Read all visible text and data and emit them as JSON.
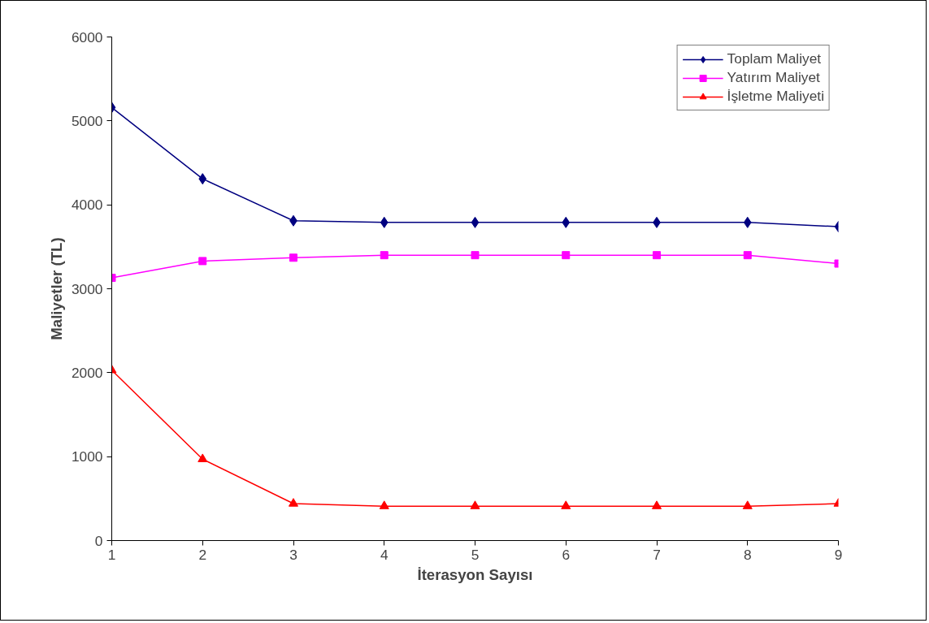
{
  "chart_data": {
    "type": "line",
    "xlabel": "İterasyon Sayısı",
    "ylabel": "Maliyetler (TL)",
    "x": [
      1,
      2,
      3,
      4,
      5,
      6,
      7,
      8,
      9
    ],
    "series": [
      {
        "name": "Toplam Maliyet",
        "color": "#000080",
        "marker": "diamond",
        "values": [
          5160,
          4310,
          3810,
          3790,
          3790,
          3790,
          3790,
          3790,
          3740
        ]
      },
      {
        "name": "Yatırım Maliyet",
        "color": "#ff00ff",
        "marker": "square",
        "values": [
          3130,
          3330,
          3370,
          3400,
          3400,
          3400,
          3400,
          3400,
          3300
        ]
      },
      {
        "name": "İşletme Maliyeti",
        "color": "#ff0000",
        "marker": "triangle",
        "values": [
          2030,
          970,
          440,
          410,
          410,
          410,
          410,
          410,
          440
        ]
      }
    ],
    "xlim": [
      1,
      9
    ],
    "xticks": [
      1,
      2,
      3,
      4,
      5,
      6,
      7,
      8,
      9
    ],
    "ylim": [
      0,
      6000
    ],
    "yticks": [
      0,
      1000,
      2000,
      3000,
      4000,
      5000,
      6000
    ],
    "grid": false,
    "legend": "top right",
    "line_style": "solid"
  }
}
